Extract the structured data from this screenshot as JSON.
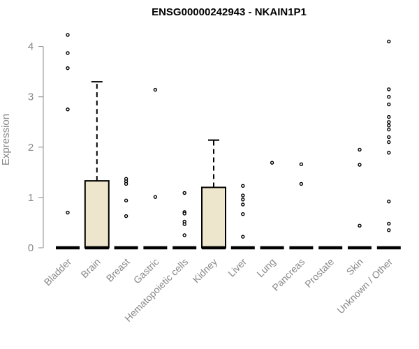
{
  "chart_data": {
    "type": "box",
    "title": "ENSG00000242943 - NKAIN1P1",
    "ylabel": "Expression",
    "xlabel": "",
    "ylim": [
      0,
      4.3
    ],
    "yticks": [
      0,
      1,
      2,
      3,
      4
    ],
    "grid": false,
    "legend": "none",
    "box_fill": "#ede6cc",
    "categories": [
      "Bladder",
      "Brain",
      "Breast",
      "Gastric",
      "Hematopoietic cells",
      "Kidney",
      "Liver",
      "Lung",
      "Pancreas",
      "Prostate",
      "Skin",
      "Unknown / Other"
    ],
    "boxes": [
      {
        "q1": 0,
        "median": 0,
        "q3": 0,
        "whisker_low": 0,
        "whisker_high": 0,
        "outliers": [
          4.23,
          3.87,
          3.57,
          2.75,
          0.7
        ]
      },
      {
        "q1": 0,
        "median": 0,
        "q3": 1.33,
        "whisker_low": 0,
        "whisker_high": 3.3,
        "outliers": []
      },
      {
        "q1": 0,
        "median": 0,
        "q3": 0,
        "whisker_low": 0,
        "whisker_high": 0,
        "outliers": [
          1.37,
          1.32,
          1.27,
          0.94,
          0.63
        ]
      },
      {
        "q1": 0,
        "median": 0,
        "q3": 0,
        "whisker_low": 0,
        "whisker_high": 0,
        "outliers": [
          3.14,
          1.01
        ]
      },
      {
        "q1": 0,
        "median": 0,
        "q3": 0,
        "whisker_low": 0,
        "whisker_high": 0,
        "outliers": [
          1.09,
          0.71,
          0.68,
          0.52,
          0.47,
          0.25
        ]
      },
      {
        "q1": 0,
        "median": 0,
        "q3": 1.2,
        "whisker_low": 0,
        "whisker_high": 2.14,
        "outliers": []
      },
      {
        "q1": 0,
        "median": 0,
        "q3": 0,
        "whisker_low": 0,
        "whisker_high": 0,
        "outliers": [
          1.23,
          1.04,
          0.96,
          0.86,
          0.67,
          0.22
        ]
      },
      {
        "q1": 0,
        "median": 0,
        "q3": 0,
        "whisker_low": 0,
        "whisker_high": 0,
        "outliers": [
          1.69
        ]
      },
      {
        "q1": 0,
        "median": 0,
        "q3": 0,
        "whisker_low": 0,
        "whisker_high": 0,
        "outliers": [
          1.66,
          1.27
        ]
      },
      {
        "q1": 0,
        "median": 0,
        "q3": 0,
        "whisker_low": 0,
        "whisker_high": 0,
        "outliers": []
      },
      {
        "q1": 0,
        "median": 0,
        "q3": 0,
        "whisker_low": 0,
        "whisker_high": 0,
        "outliers": [
          1.95,
          1.65,
          0.44
        ]
      },
      {
        "q1": 0,
        "median": 0,
        "q3": 0,
        "whisker_low": 0,
        "whisker_high": 0,
        "outliers": [
          4.1,
          3.15,
          3.0,
          2.85,
          2.6,
          2.5,
          2.43,
          2.35,
          2.2,
          2.1,
          1.89,
          0.92,
          0.48,
          0.35
        ]
      }
    ]
  }
}
